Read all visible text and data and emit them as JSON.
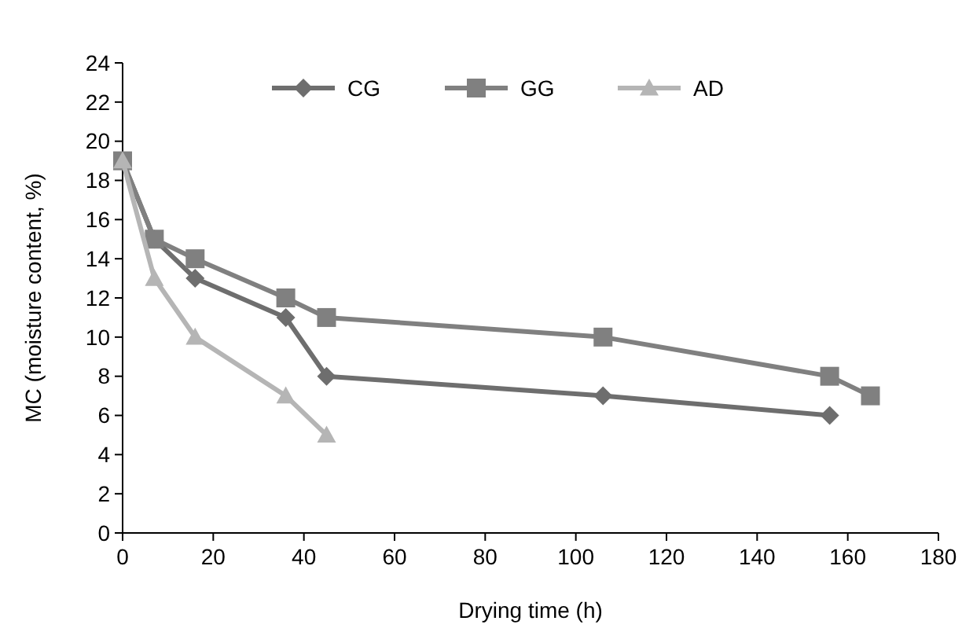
{
  "chart_data": {
    "type": "line",
    "xlabel": "Drying time (h)",
    "ylabel": "MC (moisture content, %)",
    "xlim": [
      0,
      180
    ],
    "xticks": [
      0,
      20,
      40,
      60,
      80,
      100,
      120,
      140,
      160,
      180
    ],
    "ylim": [
      0,
      24
    ],
    "yticks": [
      0,
      2,
      4,
      6,
      8,
      10,
      12,
      14,
      16,
      18,
      20,
      22,
      24
    ],
    "grid": false,
    "legend": "top",
    "line_style": "solid",
    "series": [
      {
        "name": "CG",
        "color": "#6e6e6e",
        "marker": "diamond",
        "x": [
          0,
          7,
          16,
          36,
          45,
          106,
          156
        ],
        "values": [
          19,
          15,
          13,
          11,
          8,
          7,
          6
        ]
      },
      {
        "name": "GG",
        "color": "#808080",
        "marker": "square",
        "x": [
          0,
          7,
          16,
          36,
          45,
          106,
          156,
          165
        ],
        "values": [
          19,
          15,
          14,
          12,
          11,
          10,
          8,
          7
        ]
      },
      {
        "name": "AD",
        "color": "#b5b5b5",
        "marker": "triangle",
        "x": [
          0,
          7,
          16,
          36,
          45
        ],
        "values": [
          19,
          13,
          10,
          7,
          5
        ]
      }
    ]
  }
}
